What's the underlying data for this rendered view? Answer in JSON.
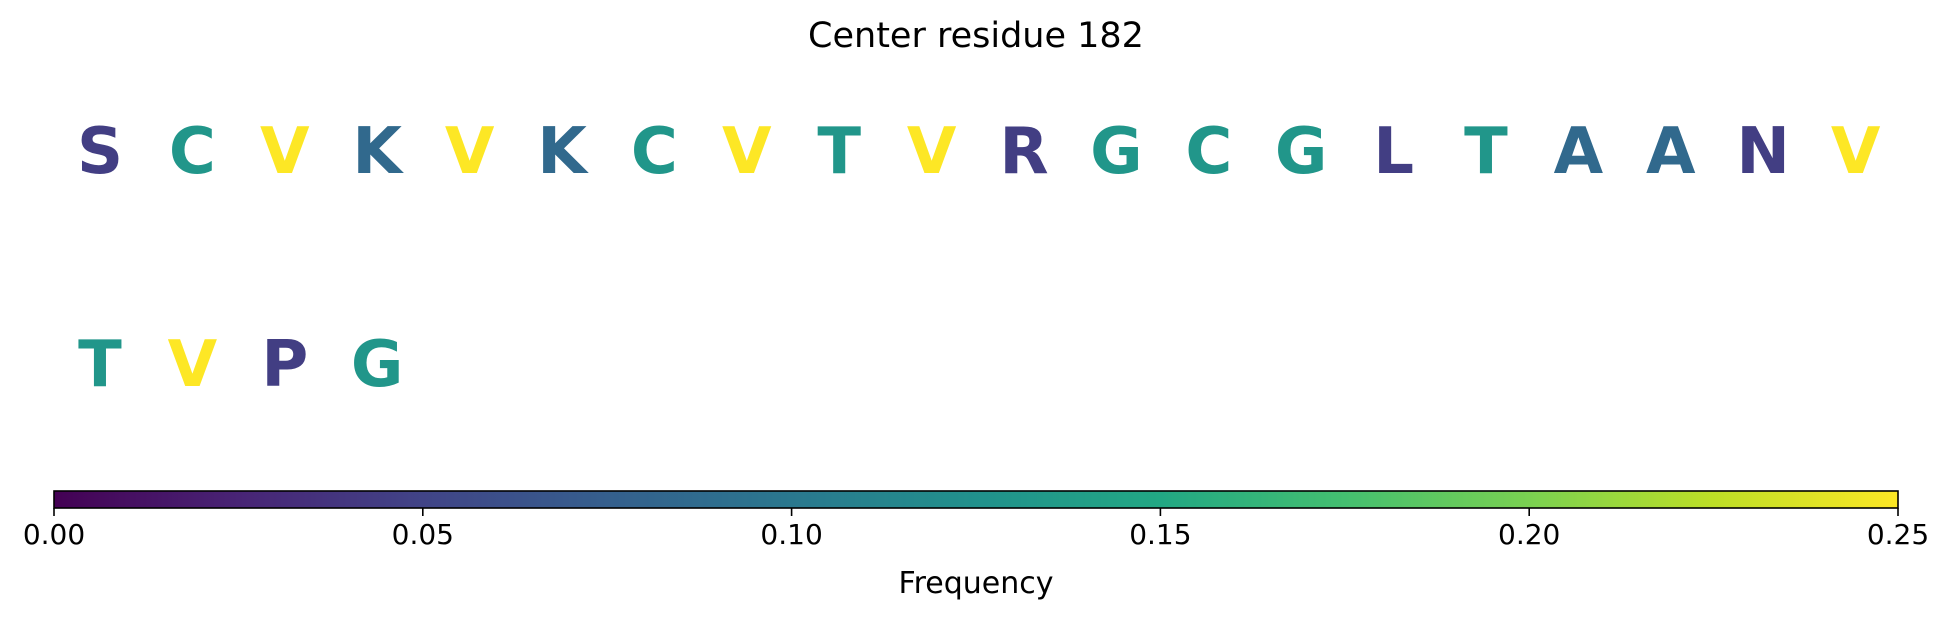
{
  "chart_data": {
    "type": "heatmap",
    "title": "Center residue 182",
    "rows": [
      [
        {
          "letter": "S",
          "frequency": 0.045
        },
        {
          "letter": "C",
          "frequency": 0.13
        },
        {
          "letter": "V",
          "frequency": 0.25
        },
        {
          "letter": "K",
          "frequency": 0.085
        },
        {
          "letter": "V",
          "frequency": 0.25
        },
        {
          "letter": "K",
          "frequency": 0.085
        },
        {
          "letter": "C",
          "frequency": 0.13
        },
        {
          "letter": "V",
          "frequency": 0.25
        },
        {
          "letter": "T",
          "frequency": 0.13
        },
        {
          "letter": "V",
          "frequency": 0.25
        },
        {
          "letter": "R",
          "frequency": 0.045
        },
        {
          "letter": "G",
          "frequency": 0.13
        },
        {
          "letter": "C",
          "frequency": 0.13
        },
        {
          "letter": "G",
          "frequency": 0.13
        },
        {
          "letter": "L",
          "frequency": 0.045
        },
        {
          "letter": "T",
          "frequency": 0.13
        },
        {
          "letter": "A",
          "frequency": 0.085
        },
        {
          "letter": "A",
          "frequency": 0.085
        },
        {
          "letter": "N",
          "frequency": 0.045
        },
        {
          "letter": "V",
          "frequency": 0.25
        }
      ],
      [
        {
          "letter": "T",
          "frequency": 0.13
        },
        {
          "letter": "V",
          "frequency": 0.25
        },
        {
          "letter": "P",
          "frequency": 0.045
        },
        {
          "letter": "G",
          "frequency": 0.13
        }
      ]
    ],
    "colorbar": {
      "label": "Frequency",
      "range": [
        0,
        0.25
      ],
      "ticks": [
        0.0,
        0.05,
        0.1,
        0.15,
        0.2,
        0.25
      ],
      "tick_labels": [
        "0.00",
        "0.05",
        "0.10",
        "0.15",
        "0.20",
        "0.25"
      ],
      "orientation": "horizontal",
      "colormap": "viridis"
    }
  }
}
